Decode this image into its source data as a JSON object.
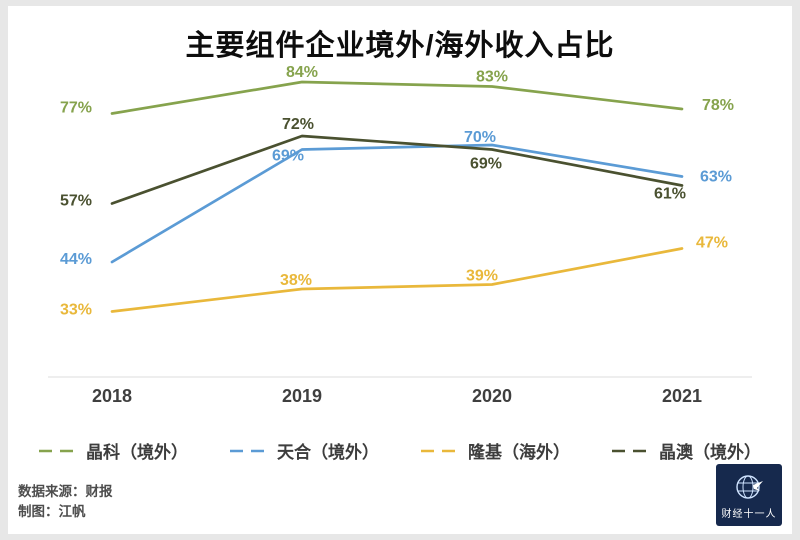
{
  "title": "主要组件企业境外/海外收入占比",
  "chart_data": {
    "type": "line",
    "categories": [
      "2018",
      "2019",
      "2020",
      "2021"
    ],
    "series": [
      {
        "name": "晶科（境外）",
        "color": "#86a34d",
        "values": [
          77,
          84,
          83,
          78
        ],
        "label_offsets": [
          [
            -36,
            -6
          ],
          [
            0,
            -10
          ],
          [
            0,
            -10
          ],
          [
            36,
            -4
          ]
        ]
      },
      {
        "name": "天合（境外）",
        "color": "#5b9bd5",
        "values": [
          44,
          69,
          70,
          63
        ],
        "label_offsets": [
          [
            -36,
            -3
          ],
          [
            -14,
            6
          ],
          [
            -12,
            -8
          ],
          [
            34,
            0
          ]
        ]
      },
      {
        "name": "隆基（海外）",
        "color": "#e9b83b",
        "values": [
          33,
          38,
          39,
          47
        ],
        "label_offsets": [
          [
            -36,
            -2
          ],
          [
            -6,
            -9
          ],
          [
            -10,
            -9
          ],
          [
            30,
            -6
          ]
        ]
      },
      {
        "name": "晶澳（境外）",
        "color": "#4a5130",
        "values": [
          57,
          72,
          69,
          61
        ],
        "label_offsets": [
          [
            -36,
            -3
          ],
          [
            -4,
            -12
          ],
          [
            -6,
            14
          ],
          [
            -12,
            8
          ]
        ]
      }
    ],
    "ylim": [
      28,
      90
    ],
    "grid": false,
    "legend_position": "bottom",
    "value_suffix": "%"
  },
  "footer": {
    "source": "数据来源：财报",
    "author": "制图：江帆"
  },
  "logo": {
    "text": "财经十一人"
  }
}
